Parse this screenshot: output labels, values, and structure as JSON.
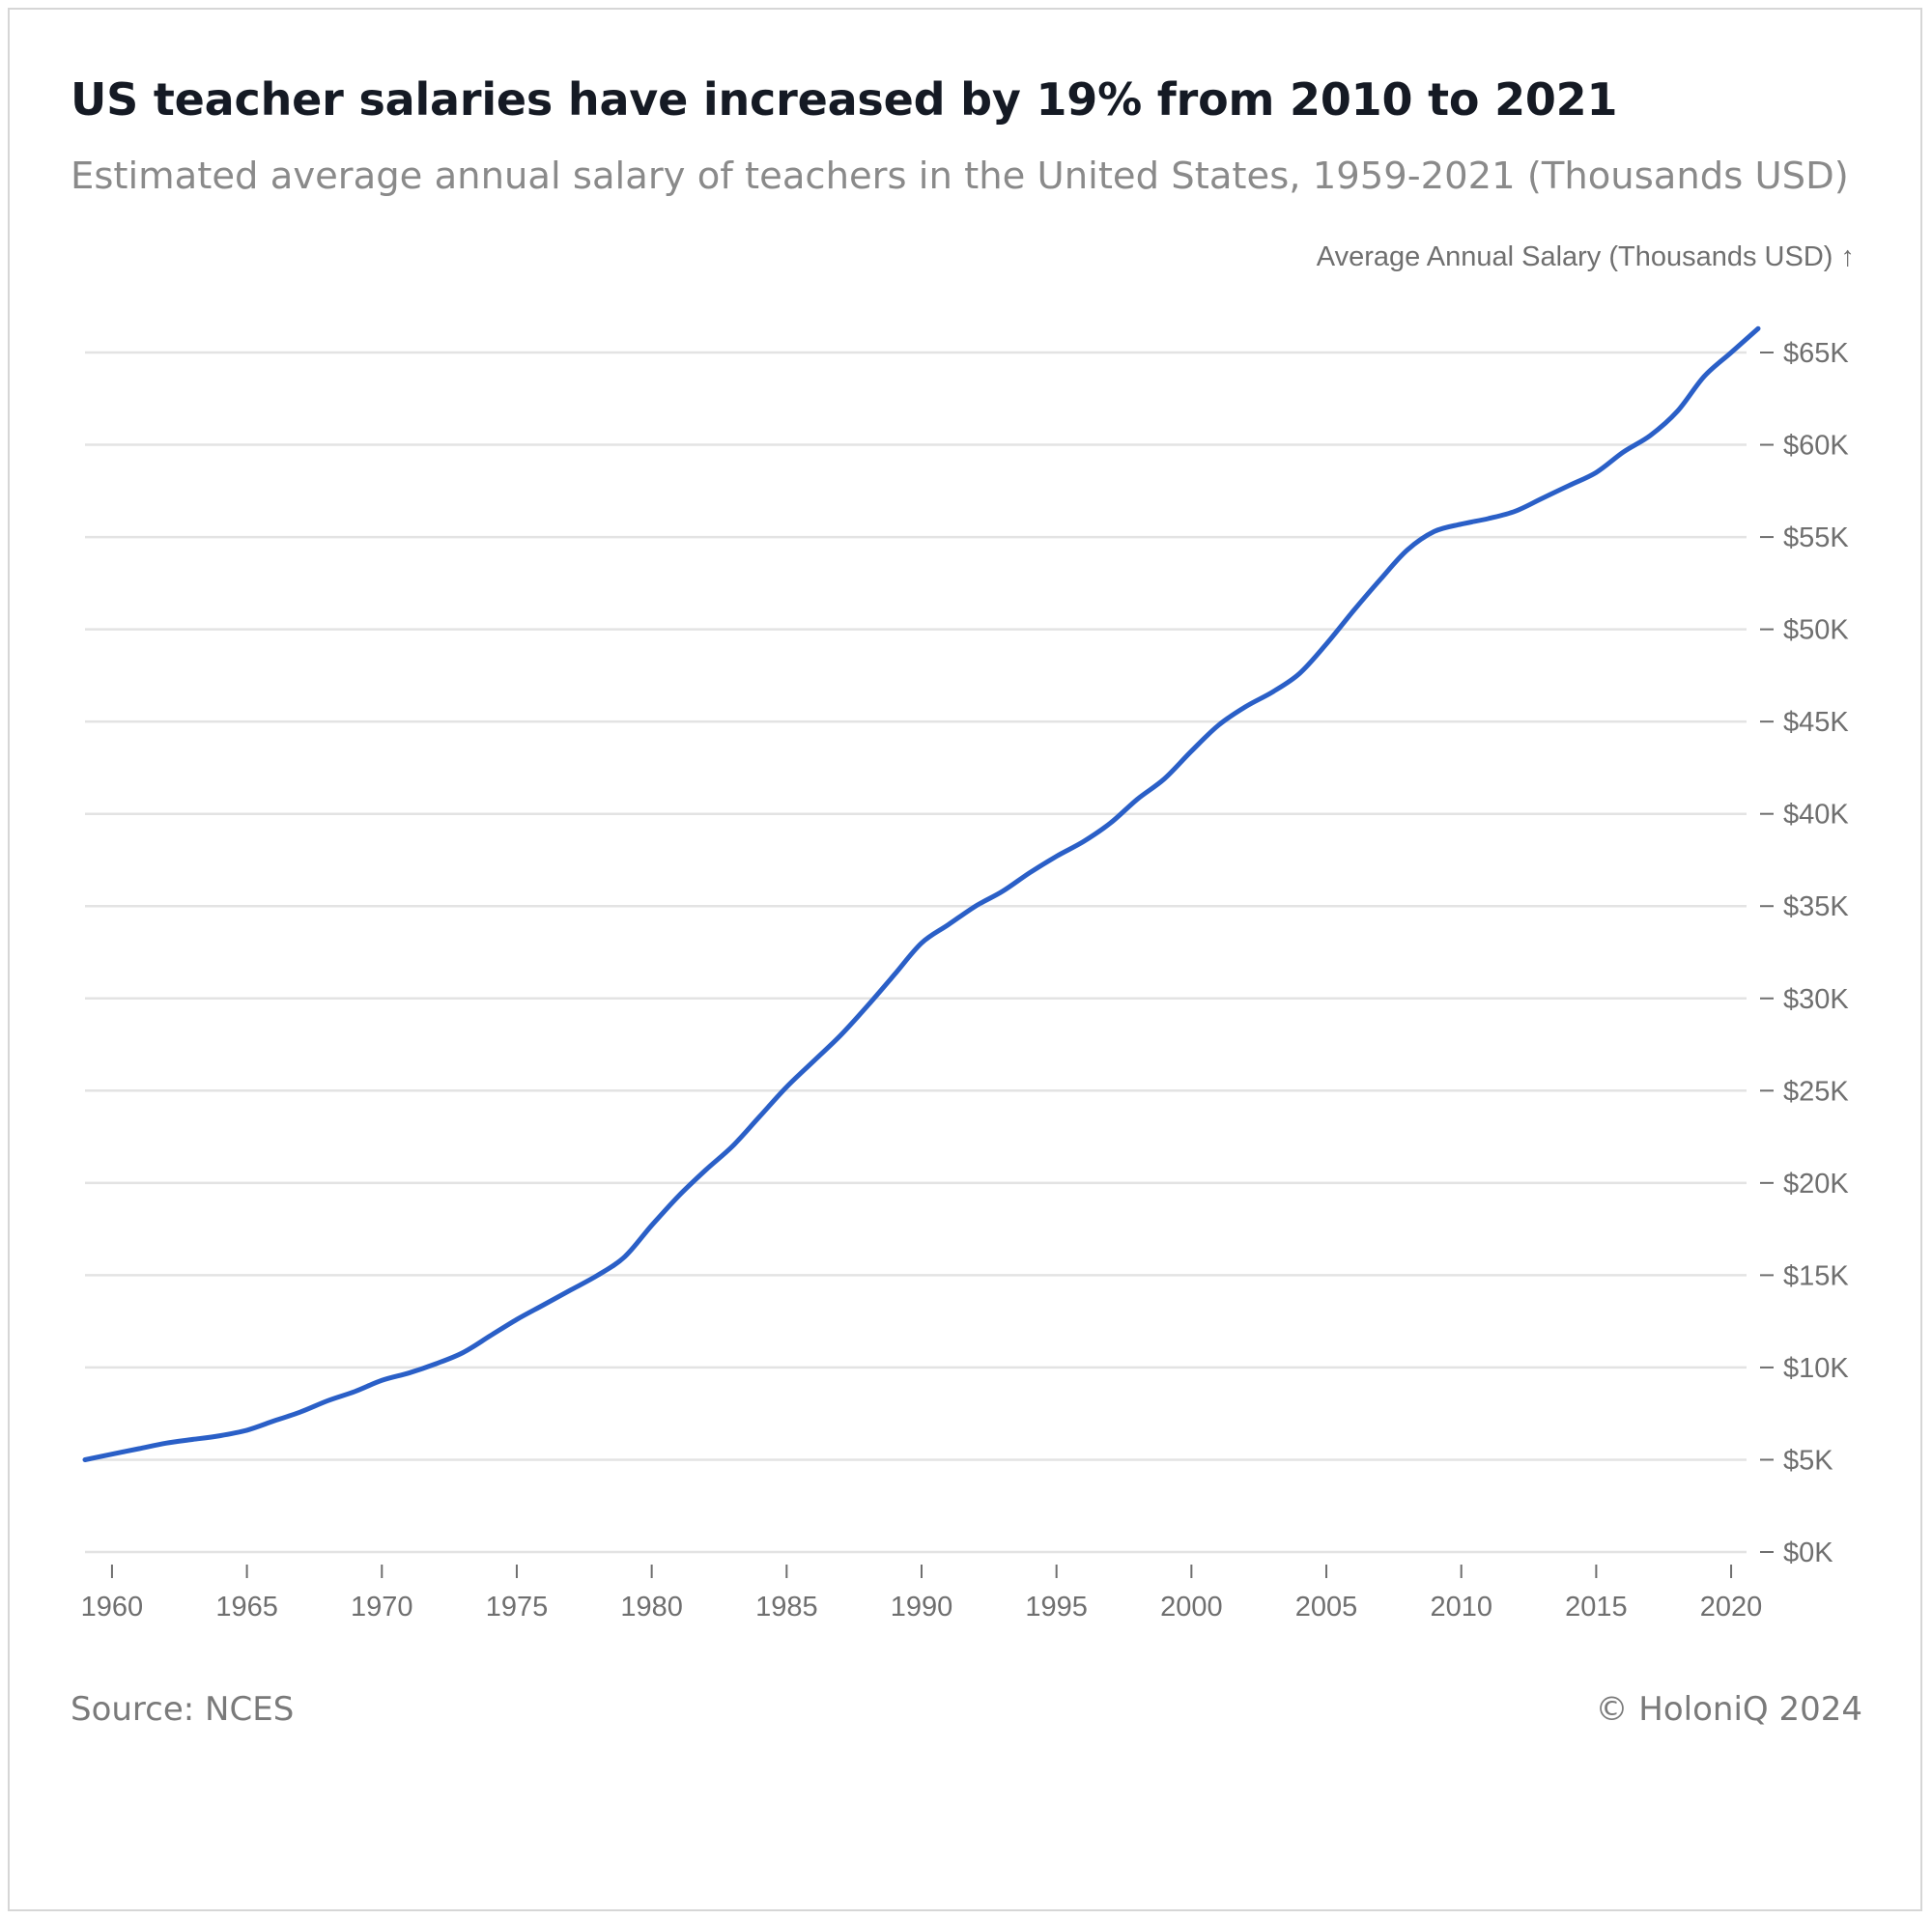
{
  "header": {
    "title": "US teacher salaries have increased by 19% from 2010 to 2021",
    "subtitle": "Estimated average annual salary of teachers in the United States, 1959-2021 (Thousands USD)"
  },
  "footer": {
    "source": "Source: NCES",
    "copyright": "© HoloniQ 2024"
  },
  "colors": {
    "line": "#2a5fc7",
    "grid": "#e3e3e3",
    "text": "#6f6f6f"
  },
  "chart_data": {
    "type": "line",
    "title": "US teacher salaries have increased by 19% from 2010 to 2021",
    "subtitle": "Estimated average annual salary of teachers in the United States, 1959-2021 (Thousands USD)",
    "xlabel": "",
    "ylabel": "Average Annual Salary (Thousands USD) ↑",
    "xlim": [
      1959,
      2021
    ],
    "ylim": [
      0,
      65
    ],
    "x_ticks": [
      1960,
      1965,
      1970,
      1975,
      1980,
      1985,
      1990,
      1995,
      2000,
      2005,
      2010,
      2015,
      2020
    ],
    "x_tick_labels": [
      "1960",
      "1965",
      "1970",
      "1975",
      "1980",
      "1985",
      "1990",
      "1995",
      "2000",
      "2005",
      "2010",
      "2015",
      "2020"
    ],
    "y_ticks": [
      0,
      5,
      10,
      15,
      20,
      25,
      30,
      35,
      40,
      45,
      50,
      55,
      60,
      65
    ],
    "y_tick_labels": [
      "$0K",
      "$5K",
      "$10K",
      "$15K",
      "$20K",
      "$25K",
      "$30K",
      "$35K",
      "$40K",
      "$45K",
      "$50K",
      "$55K",
      "$60K",
      "$65K"
    ],
    "y_axis_position": "right",
    "grid": true,
    "legend": false,
    "series": [
      {
        "x": [
          1959,
          1960,
          1961,
          1962,
          1963,
          1964,
          1965,
          1966,
          1967,
          1968,
          1969,
          1970,
          1971,
          1972,
          1973,
          1974,
          1975,
          1976,
          1977,
          1978,
          1979,
          1980,
          1981,
          1982,
          1983,
          1984,
          1985,
          1986,
          1987,
          1988,
          1989,
          1990,
          1991,
          1992,
          1993,
          1994,
          1995,
          1996,
          1997,
          1998,
          1999,
          2000,
          2001,
          2002,
          2003,
          2004,
          2005,
          2006,
          2007,
          2008,
          2009,
          2010,
          2011,
          2012,
          2013,
          2014,
          2015,
          2016,
          2017,
          2018,
          2019,
          2020,
          2021
        ],
        "values": [
          5.0,
          5.3,
          5.6,
          5.9,
          6.1,
          6.3,
          6.6,
          7.1,
          7.6,
          8.2,
          8.7,
          9.3,
          9.7,
          10.2,
          10.8,
          11.7,
          12.6,
          13.4,
          14.2,
          15.0,
          16.0,
          17.7,
          19.3,
          20.7,
          22.0,
          23.6,
          25.2,
          26.6,
          28.0,
          29.6,
          31.3,
          33.0,
          34.0,
          35.0,
          35.8,
          36.8,
          37.7,
          38.5,
          39.5,
          40.8,
          41.9,
          43.4,
          44.8,
          45.8,
          46.6,
          47.6,
          49.2,
          51.0,
          52.7,
          54.3,
          55.3,
          55.7,
          56.0,
          56.4,
          57.1,
          57.8,
          58.5,
          59.6,
          60.5,
          61.8,
          63.7,
          65.0,
          66.3
        ]
      }
    ]
  }
}
